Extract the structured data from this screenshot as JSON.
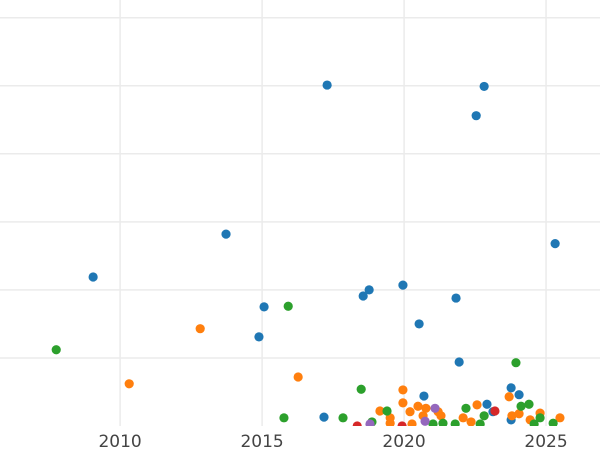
{
  "chart_data": {
    "type": "scatter",
    "title": "",
    "xlabel": "",
    "ylabel": "",
    "xlim": [
      2005.77,
      2026.9
    ],
    "ylim": [
      0,
      6.26
    ],
    "x_ticks": [
      2010,
      2015,
      2020,
      2025
    ],
    "x_tick_labels": [
      "2010",
      "2015",
      "2020",
      "2025"
    ],
    "y_grid": [
      1,
      2,
      3,
      4,
      5,
      6
    ],
    "grid": true,
    "legend": "none",
    "series": [
      {
        "name": "blue",
        "color": "#1f77b4",
        "points": [
          [
            2009.05,
            2.19
          ],
          [
            2017.29,
            5.01
          ],
          [
            2022.82,
            4.99
          ],
          [
            2022.54,
            4.56
          ],
          [
            2013.73,
            2.82
          ],
          [
            2025.32,
            2.68
          ],
          [
            2015.07,
            1.75
          ],
          [
            2014.89,
            1.31
          ],
          [
            2018.77,
            2.0
          ],
          [
            2018.56,
            1.91
          ],
          [
            2019.96,
            2.07
          ],
          [
            2021.83,
            1.88
          ],
          [
            2020.53,
            1.5
          ],
          [
            2021.94,
            0.94
          ],
          [
            2017.18,
            0.13
          ],
          [
            2020.7,
            0.44
          ],
          [
            2023.77,
            0.56
          ],
          [
            2024.05,
            0.46
          ],
          [
            2022.92,
            0.32
          ],
          [
            2023.77,
            0.09
          ],
          [
            2023.13,
            0.21
          ]
        ]
      },
      {
        "name": "orange",
        "color": "#ff7f0e",
        "points": [
          [
            2012.82,
            1.43
          ],
          [
            2010.32,
            0.62
          ],
          [
            2016.27,
            0.72
          ],
          [
            2019.96,
            0.53
          ],
          [
            2019.96,
            0.34
          ],
          [
            2019.15,
            0.22
          ],
          [
            2019.51,
            0.12
          ],
          [
            2020.21,
            0.21
          ],
          [
            2020.49,
            0.29
          ],
          [
            2020.77,
            0.26
          ],
          [
            2020.67,
            0.15
          ],
          [
            2021.2,
            0.21
          ],
          [
            2021.3,
            0.15
          ],
          [
            2022.08,
            0.12
          ],
          [
            2022.57,
            0.31
          ],
          [
            2022.36,
            0.06
          ],
          [
            2023.7,
            0.43
          ],
          [
            2023.8,
            0.15
          ],
          [
            2024.79,
            0.19
          ],
          [
            2025.49,
            0.12
          ],
          [
            2024.05,
            0.18
          ],
          [
            2024.44,
            0.09
          ],
          [
            2020.28,
            0.03
          ],
          [
            2019.51,
            0.04
          ]
        ]
      },
      {
        "name": "green",
        "color": "#2ca02c",
        "points": [
          [
            2007.75,
            1.12
          ],
          [
            2015.92,
            1.76
          ],
          [
            2018.49,
            0.54
          ],
          [
            2023.94,
            0.93
          ],
          [
            2015.77,
            0.12
          ],
          [
            2017.85,
            0.12
          ],
          [
            2019.4,
            0.22
          ],
          [
            2018.87,
            0.06
          ],
          [
            2022.18,
            0.26
          ],
          [
            2024.12,
            0.29
          ],
          [
            2024.4,
            0.32
          ],
          [
            2022.82,
            0.15
          ],
          [
            2021.8,
            0.03
          ],
          [
            2021.02,
            0.03
          ],
          [
            2021.37,
            0.04
          ],
          [
            2022.68,
            0.03
          ],
          [
            2024.79,
            0.12
          ],
          [
            2025.25,
            0.04
          ],
          [
            2024.58,
            0.03
          ]
        ]
      },
      {
        "name": "red",
        "color": "#d62728",
        "points": [
          [
            2018.35,
            0
          ],
          [
            2019.93,
            0
          ],
          [
            2023.2,
            0.22
          ]
        ]
      },
      {
        "name": "purple",
        "color": "#9467bd",
        "points": [
          [
            2018.8,
            0.03
          ],
          [
            2021.09,
            0.26
          ],
          [
            2020.74,
            0.07
          ]
        ]
      }
    ]
  }
}
